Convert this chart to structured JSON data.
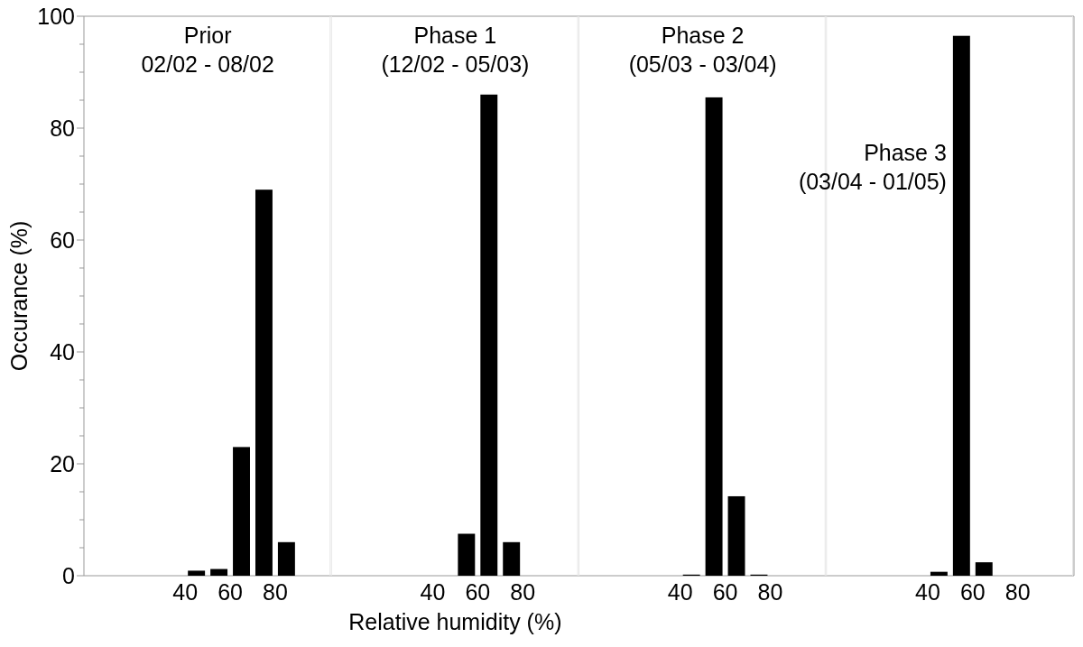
{
  "chart_data": [
    {
      "type": "histogram",
      "title": "Prior",
      "subtitle": "02/02 - 08/02",
      "ylabel": "Occurance (%)",
      "bins": [
        40,
        50,
        60,
        70,
        80,
        90
      ],
      "values": [
        0.9,
        1.2,
        23,
        69,
        6
      ],
      "color": "#000000",
      "xlim": [
        -5,
        105
      ],
      "xticks": [
        40,
        60,
        80
      ],
      "ylim": [
        0,
        100
      ],
      "yticks": [
        0,
        {
          "value": 5,
          "label": null
        },
        {
          "value": 10,
          "label": null
        },
        {
          "value": 15,
          "label": null
        },
        20,
        {
          "value": 25,
          "label": null
        },
        {
          "value": 30,
          "label": null
        },
        {
          "value": 35,
          "label": null
        },
        40,
        {
          "value": 45,
          "label": null
        },
        {
          "value": 50,
          "label": null
        },
        {
          "value": 55,
          "label": null
        },
        60,
        {
          "value": 65,
          "label": null
        },
        {
          "value": 70,
          "label": null
        },
        {
          "value": 75,
          "label": null
        },
        80,
        {
          "value": 85,
          "label": null
        },
        {
          "value": 90,
          "label": null
        },
        {
          "value": 95,
          "label": null
        },
        100
      ]
    },
    {
      "type": "histogram",
      "title": "Phase 1",
      "subtitle": "(12/02 - 05/03)",
      "xlabel": "Relative humidity (%)",
      "bins": [
        40,
        50,
        60,
        70,
        80,
        90
      ],
      "values": [
        0,
        7.5,
        86,
        6,
        0
      ],
      "color": "#000000",
      "xlim": [
        -5,
        105
      ],
      "xticks": [
        40,
        60,
        80
      ],
      "ylim": [
        0,
        100
      ],
      "tick_labels": "x"
    },
    {
      "type": "histogram",
      "title": "Phase 2",
      "subtitle": "(05/03 - 03/04)",
      "bins": [
        40,
        50,
        60,
        70,
        80,
        90
      ],
      "values": [
        0.2,
        85.5,
        14.2,
        0.2,
        0
      ],
      "color": "#000000",
      "xlim": [
        -5,
        105
      ],
      "xticks": [
        40,
        60,
        80
      ],
      "ylim": [
        0,
        100
      ],
      "tick_labels": "x"
    },
    {
      "type": "histogram",
      "title": "Phase 3",
      "subtitle": "(03/04 - 01/05)",
      "bins": [
        40,
        50,
        60,
        70,
        80,
        90
      ],
      "values": [
        0.7,
        96.5,
        2.4,
        0,
        0
      ],
      "color": "#000000",
      "xlim": [
        -5,
        105
      ],
      "xticks": [
        40,
        60,
        80
      ],
      "ylim": [
        0,
        100
      ],
      "tick_labels": "x"
    }
  ]
}
